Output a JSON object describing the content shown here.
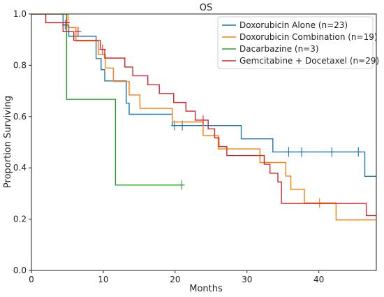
{
  "chart_data": {
    "type": "line",
    "subtype": "kaplan-meier step",
    "title": "OS",
    "xlabel": "Months",
    "ylabel": "Proportion Surviving",
    "xlim": [
      0,
      48
    ],
    "ylim": [
      0,
      1.0
    ],
    "xticks": [
      "0",
      "10",
      "20",
      "30",
      "40"
    ],
    "yticks": [
      "0.0",
      "0.2",
      "0.4",
      "0.6",
      "0.8",
      "1.0"
    ],
    "grid": false,
    "legend_position": "top-right",
    "series": [
      {
        "name": "Doxorubicin Alone (n=23)",
        "color": "#1f77b4",
        "x": [
          0,
          4.4,
          5.2,
          9.0,
          9.7,
          10.2,
          13.2,
          13.6,
          19.6,
          29.2,
          33.6,
          46.4,
          48
        ],
        "y": [
          1.0,
          0.957,
          0.913,
          0.826,
          0.783,
          0.739,
          0.652,
          0.609,
          0.565,
          0.513,
          0.462,
          0.367,
          0.367
        ],
        "censored": [
          [
            4.7,
            0.957
          ],
          [
            19.9,
            0.565
          ],
          [
            21.0,
            0.565
          ],
          [
            35.8,
            0.462
          ],
          [
            37.6,
            0.462
          ],
          [
            41.8,
            0.462
          ],
          [
            45.5,
            0.462
          ]
        ]
      },
      {
        "name": "Doxorubicin Combination (n=19)",
        "color": "#ff7f0e",
        "x": [
          0,
          5.1,
          6.2,
          9.3,
          10.3,
          11.4,
          13.6,
          15.1,
          19.6,
          23.9,
          26.0,
          31.8,
          35.4,
          36.1,
          38.0,
          42.4,
          48
        ],
        "y": [
          1.0,
          0.947,
          0.895,
          0.842,
          0.789,
          0.737,
          0.684,
          0.632,
          0.579,
          0.526,
          0.474,
          0.421,
          0.368,
          0.316,
          0.263,
          0.197,
          0.197
        ],
        "censored": [
          [
            40.1,
            0.263
          ]
        ]
      },
      {
        "name": "Dacarbazine (n=3)",
        "color": "#2ca02c",
        "x": [
          0,
          4.5,
          4.9,
          11.7,
          21.1
        ],
        "y": [
          1.0,
          1.0,
          0.667,
          0.333,
          0.333
        ],
        "censored": [
          [
            20.9,
            0.333
          ]
        ]
      },
      {
        "name": "Gemcitabine + Docetaxel (n=29)",
        "color": "#d62728",
        "x": [
          0,
          2.0,
          4.4,
          5.9,
          9.6,
          10.2,
          13.0,
          14.1,
          16.2,
          17.8,
          19.8,
          21.5,
          22.8,
          24.6,
          25.5,
          26.1,
          27.2,
          32.4,
          33.2,
          34.3,
          34.8,
          46.6,
          48
        ],
        "y": [
          1.0,
          0.966,
          0.931,
          0.897,
          0.862,
          0.828,
          0.793,
          0.759,
          0.724,
          0.69,
          0.655,
          0.621,
          0.586,
          0.552,
          0.517,
          0.483,
          0.448,
          0.414,
          0.379,
          0.345,
          0.261,
          0.214,
          0.214
        ],
        "censored": [
          [
            4.9,
            0.966
          ],
          [
            6.5,
            0.931
          ],
          [
            9.9,
            0.862
          ],
          [
            23.9,
            0.586
          ]
        ]
      }
    ]
  }
}
